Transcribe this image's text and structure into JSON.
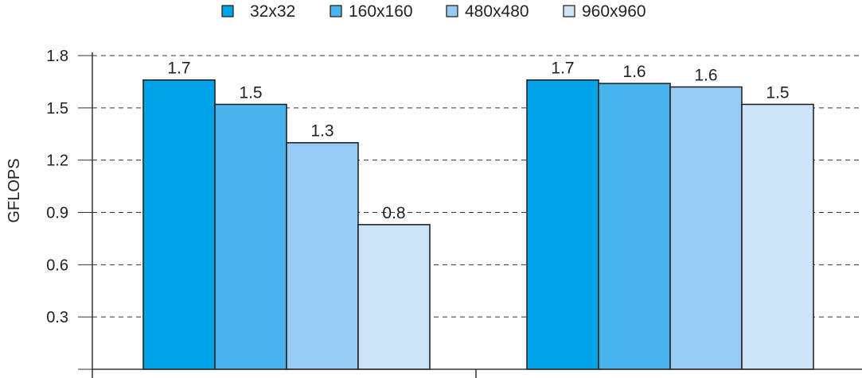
{
  "chart_data": {
    "type": "bar",
    "ylabel": "GFLOPS",
    "ylim": [
      0,
      1.8
    ],
    "yticks": [
      "0.3",
      "0.6",
      "0.9",
      "1.2",
      "1.5",
      "1.8"
    ],
    "grid": true,
    "legend_position": "top",
    "groups": 2,
    "series": [
      {
        "name": "32x32",
        "color": "#00a3e6",
        "values": [
          1.66,
          1.66
        ],
        "labels": [
          "1.7",
          "1.7"
        ]
      },
      {
        "name": "160x160",
        "color": "#48b3ec",
        "values": [
          1.52,
          1.64
        ],
        "labels": [
          "1.5",
          "1.6"
        ]
      },
      {
        "name": "480x480",
        "color": "#96ccf3",
        "values": [
          1.3,
          1.62
        ],
        "labels": [
          "1.3",
          "1.6"
        ]
      },
      {
        "name": "960x960",
        "color": "#cde4f8",
        "values": [
          0.83,
          1.52
        ],
        "labels": [
          "0.8",
          "1.5"
        ]
      }
    ]
  }
}
